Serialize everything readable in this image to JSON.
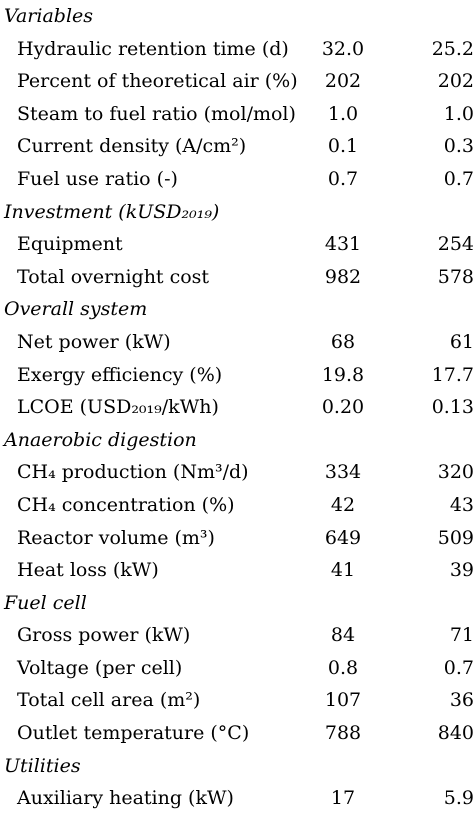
{
  "sections": [
    {
      "title": "Variables",
      "rows": [
        {
          "label": "Hydraulic retention time (d)",
          "v1": "32.0",
          "v2": "25.2"
        },
        {
          "label": "Percent of theoretical air (%)",
          "v1": "202",
          "v2": "202"
        },
        {
          "label": "Steam to fuel ratio (mol/mol)",
          "v1": "1.0",
          "v2": "1.0"
        },
        {
          "label": "Current density (A/cm²)",
          "v1": "0.1",
          "v2": "0.3"
        },
        {
          "label": "Fuel use ratio (-)",
          "v1": "0.7",
          "v2": "0.7"
        }
      ]
    },
    {
      "title": "Investment (kUSD₂₀₁₉)",
      "rows": [
        {
          "label": "Equipment",
          "v1": "431",
          "v2": "254"
        },
        {
          "label": "Total overnight cost",
          "v1": "982",
          "v2": "578"
        }
      ]
    },
    {
      "title": "Overall system",
      "rows": [
        {
          "label": "Net power (kW)",
          "v1": "68",
          "v2": "61"
        },
        {
          "label": "Exergy efficiency (%)",
          "v1": "19.8",
          "v2": "17.7"
        },
        {
          "label": "LCOE (USD₂₀₁₉/kWh)",
          "v1": "0.20",
          "v2": "0.13"
        }
      ]
    },
    {
      "title": "Anaerobic digestion",
      "rows": [
        {
          "label": "CH₄ production (Nm³/d)",
          "v1": "334",
          "v2": "320"
        },
        {
          "label": "CH₄ concentration (%)",
          "v1": "42",
          "v2": "43"
        },
        {
          "label": "Reactor volume (m³)",
          "v1": "649",
          "v2": "509"
        },
        {
          "label": "Heat loss (kW)",
          "v1": "41",
          "v2": "39"
        }
      ]
    },
    {
      "title": "Fuel cell",
      "rows": [
        {
          "label": "Gross power (kW)",
          "v1": "84",
          "v2": "71"
        },
        {
          "label": "Voltage (per cell)",
          "v1": "0.8",
          "v2": "0.7"
        },
        {
          "label": "Total cell area (m²)",
          "v1": "107",
          "v2": "36"
        },
        {
          "label": "Outlet temperature (°C)",
          "v1": "788",
          "v2": "840"
        }
      ]
    },
    {
      "title": "Utilities",
      "rows": [
        {
          "label": "Auxiliary heating (kW)",
          "v1": "17",
          "v2": "5.9"
        }
      ]
    }
  ]
}
